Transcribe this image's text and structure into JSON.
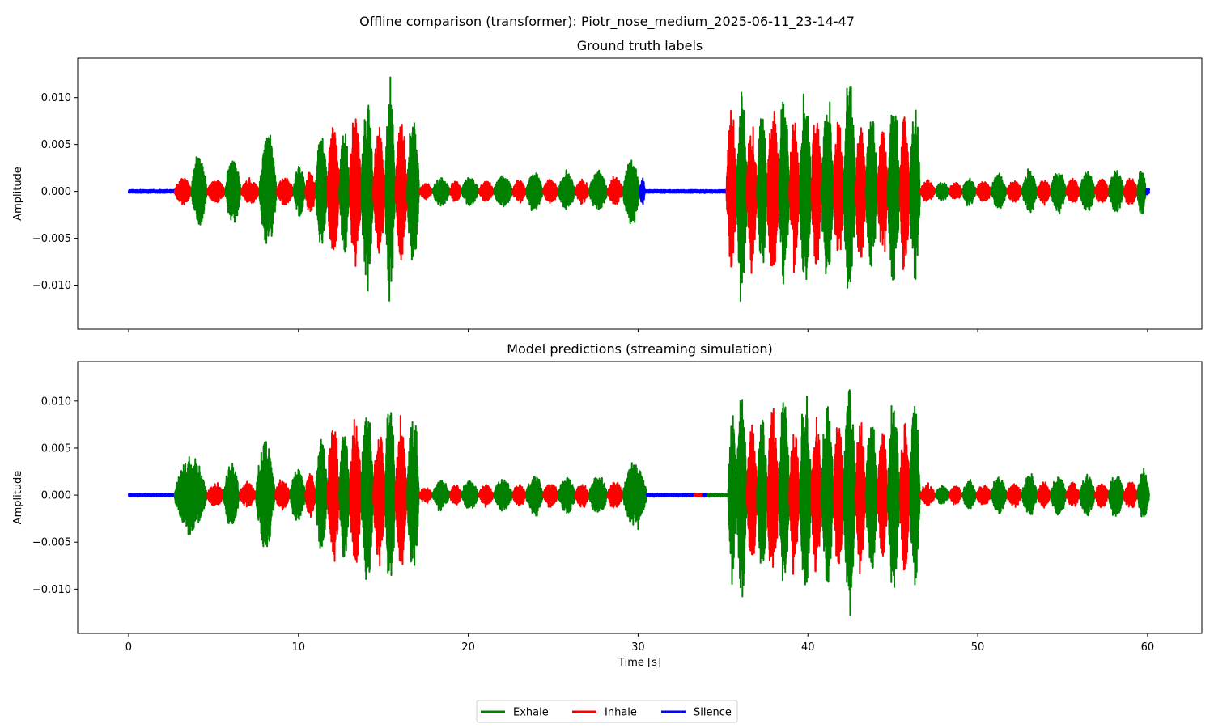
{
  "figure": {
    "suptitle": "Offline comparison (transformer): Piotr_nose_medium_2025-06-11_23-14-47"
  },
  "colors": {
    "Exhale": "#008000",
    "Inhale": "#ff0000",
    "Silence": "#0000ff"
  },
  "legend": {
    "placement": "bottom-center",
    "entries": [
      "Exhale",
      "Inhale",
      "Silence"
    ]
  },
  "chart_data": [
    {
      "type": "line",
      "title": "Ground truth labels",
      "xlabel": "",
      "ylabel": "Amplitude",
      "xlim": [
        -3,
        63.2
      ],
      "ylim": [
        -0.0147,
        0.0142
      ],
      "xticks": [
        0,
        10,
        20,
        30,
        40,
        50,
        60
      ],
      "xtick_labels": [
        "",
        "",
        "",
        "",
        "",
        "",
        ""
      ],
      "yticks": [
        -0.01,
        -0.005,
        0,
        0.005,
        0.01
      ],
      "ytick_labels": [
        "−0.010",
        "−0.005",
        "0.000",
        "0.005",
        "0.010"
      ],
      "grid": false,
      "segments": [
        {
          "label": "Silence",
          "start": 0.0,
          "end": 2.7,
          "amp": 0.0002
        },
        {
          "label": "Inhale",
          "start": 2.7,
          "end": 3.7,
          "amp": 0.0017
        },
        {
          "label": "Exhale",
          "start": 3.7,
          "end": 4.6,
          "amp": 0.0044
        },
        {
          "label": "Inhale",
          "start": 4.6,
          "end": 5.7,
          "amp": 0.0014
        },
        {
          "label": "Exhale",
          "start": 5.7,
          "end": 6.6,
          "amp": 0.0042
        },
        {
          "label": "Inhale",
          "start": 6.6,
          "end": 7.7,
          "amp": 0.0015
        },
        {
          "label": "Exhale",
          "start": 7.7,
          "end": 8.7,
          "amp": 0.0069
        },
        {
          "label": "Inhale",
          "start": 8.7,
          "end": 9.7,
          "amp": 0.0018
        },
        {
          "label": "Exhale",
          "start": 9.7,
          "end": 10.4,
          "amp": 0.0032
        },
        {
          "label": "Inhale",
          "start": 10.4,
          "end": 11.0,
          "amp": 0.0028
        },
        {
          "label": "Exhale",
          "start": 11.0,
          "end": 11.7,
          "amp": 0.007
        },
        {
          "label": "Inhale",
          "start": 11.7,
          "end": 12.4,
          "amp": 0.0087
        },
        {
          "label": "Exhale",
          "start": 12.4,
          "end": 13.0,
          "amp": 0.008
        },
        {
          "label": "Inhale",
          "start": 13.0,
          "end": 13.7,
          "amp": 0.0094
        },
        {
          "label": "Exhale",
          "start": 13.7,
          "end": 14.4,
          "amp": 0.0115
        },
        {
          "label": "Inhale",
          "start": 14.4,
          "end": 15.1,
          "amp": 0.0082
        },
        {
          "label": "Exhale",
          "start": 15.1,
          "end": 15.7,
          "amp": 0.0128
        },
        {
          "label": "Inhale",
          "start": 15.7,
          "end": 16.4,
          "amp": 0.0086
        },
        {
          "label": "Exhale",
          "start": 16.4,
          "end": 17.1,
          "amp": 0.0098
        },
        {
          "label": "Inhale",
          "start": 17.1,
          "end": 17.9,
          "amp": 0.001
        },
        {
          "label": "Exhale",
          "start": 17.9,
          "end": 18.9,
          "amp": 0.0018
        },
        {
          "label": "Inhale",
          "start": 18.9,
          "end": 19.6,
          "amp": 0.0013
        },
        {
          "label": "Exhale",
          "start": 19.6,
          "end": 20.6,
          "amp": 0.0018
        },
        {
          "label": "Inhale",
          "start": 20.6,
          "end": 21.5,
          "amp": 0.0013
        },
        {
          "label": "Exhale",
          "start": 21.5,
          "end": 22.6,
          "amp": 0.002
        },
        {
          "label": "Inhale",
          "start": 22.6,
          "end": 23.4,
          "amp": 0.0014
        },
        {
          "label": "Exhale",
          "start": 23.4,
          "end": 24.4,
          "amp": 0.0024
        },
        {
          "label": "Inhale",
          "start": 24.4,
          "end": 25.3,
          "amp": 0.0015
        },
        {
          "label": "Exhale",
          "start": 25.3,
          "end": 26.3,
          "amp": 0.0023
        },
        {
          "label": "Inhale",
          "start": 26.3,
          "end": 27.1,
          "amp": 0.0015
        },
        {
          "label": "Exhale",
          "start": 27.1,
          "end": 28.2,
          "amp": 0.0024
        },
        {
          "label": "Inhale",
          "start": 28.2,
          "end": 29.1,
          "amp": 0.0017
        },
        {
          "label": "Exhale",
          "start": 29.1,
          "end": 30.1,
          "amp": 0.0039
        },
        {
          "label": "Silence",
          "start": 30.1,
          "end": 30.4,
          "amp": 0.0018
        },
        {
          "label": "Silence",
          "start": 30.4,
          "end": 35.2,
          "amp": 0.0002
        },
        {
          "label": "Inhale",
          "start": 35.2,
          "end": 35.8,
          "amp": 0.0096
        },
        {
          "label": "Exhale",
          "start": 35.8,
          "end": 36.4,
          "amp": 0.013
        },
        {
          "label": "Inhale",
          "start": 36.4,
          "end": 37.0,
          "amp": 0.0094
        },
        {
          "label": "Exhale",
          "start": 37.0,
          "end": 37.6,
          "amp": 0.0098
        },
        {
          "label": "Inhale",
          "start": 37.6,
          "end": 38.3,
          "amp": 0.011
        },
        {
          "label": "Exhale",
          "start": 38.3,
          "end": 38.9,
          "amp": 0.012
        },
        {
          "label": "Inhale",
          "start": 38.9,
          "end": 39.5,
          "amp": 0.009
        },
        {
          "label": "Exhale",
          "start": 39.5,
          "end": 40.2,
          "amp": 0.0118
        },
        {
          "label": "Inhale",
          "start": 40.2,
          "end": 40.8,
          "amp": 0.01
        },
        {
          "label": "Exhale",
          "start": 40.8,
          "end": 41.5,
          "amp": 0.0112
        },
        {
          "label": "Inhale",
          "start": 41.5,
          "end": 42.1,
          "amp": 0.0092
        },
        {
          "label": "Exhale",
          "start": 42.1,
          "end": 42.8,
          "amp": 0.0135
        },
        {
          "label": "Inhale",
          "start": 42.8,
          "end": 43.4,
          "amp": 0.009
        },
        {
          "label": "Exhale",
          "start": 43.4,
          "end": 44.1,
          "amp": 0.0095
        },
        {
          "label": "Inhale",
          "start": 44.1,
          "end": 44.7,
          "amp": 0.008
        },
        {
          "label": "Exhale",
          "start": 44.7,
          "end": 45.4,
          "amp": 0.0118
        },
        {
          "label": "Inhale",
          "start": 45.4,
          "end": 46.0,
          "amp": 0.0096
        },
        {
          "label": "Exhale",
          "start": 46.0,
          "end": 46.6,
          "amp": 0.0114
        },
        {
          "label": "Inhale",
          "start": 46.6,
          "end": 47.5,
          "amp": 0.0013
        },
        {
          "label": "Exhale",
          "start": 47.5,
          "end": 48.3,
          "amp": 0.0012
        },
        {
          "label": "Inhale",
          "start": 48.3,
          "end": 49.1,
          "amp": 0.0011
        },
        {
          "label": "Exhale",
          "start": 49.1,
          "end": 49.9,
          "amp": 0.0018
        },
        {
          "label": "Inhale",
          "start": 49.9,
          "end": 50.8,
          "amp": 0.0013
        },
        {
          "label": "Exhale",
          "start": 50.8,
          "end": 51.7,
          "amp": 0.0023
        },
        {
          "label": "Inhale",
          "start": 51.7,
          "end": 52.6,
          "amp": 0.0014
        },
        {
          "label": "Exhale",
          "start": 52.6,
          "end": 53.5,
          "amp": 0.0025
        },
        {
          "label": "Inhale",
          "start": 53.5,
          "end": 54.3,
          "amp": 0.0015
        },
        {
          "label": "Exhale",
          "start": 54.3,
          "end": 55.2,
          "amp": 0.0025
        },
        {
          "label": "Inhale",
          "start": 55.2,
          "end": 56.0,
          "amp": 0.0016
        },
        {
          "label": "Exhale",
          "start": 56.0,
          "end": 56.9,
          "amp": 0.0026
        },
        {
          "label": "Inhale",
          "start": 56.9,
          "end": 57.7,
          "amp": 0.0016
        },
        {
          "label": "Exhale",
          "start": 57.7,
          "end": 58.6,
          "amp": 0.0027
        },
        {
          "label": "Inhale",
          "start": 58.6,
          "end": 59.4,
          "amp": 0.0018
        },
        {
          "label": "Exhale",
          "start": 59.4,
          "end": 59.9,
          "amp": 0.003
        },
        {
          "label": "Silence",
          "start": 59.9,
          "end": 60.1,
          "amp": 0.0004
        }
      ]
    },
    {
      "type": "line",
      "title": "Model predictions (streaming simulation)",
      "xlabel": "Time [s]",
      "ylabel": "Amplitude",
      "xlim": [
        -3,
        63.2
      ],
      "ylim": [
        -0.0147,
        0.0142
      ],
      "xticks": [
        0,
        10,
        20,
        30,
        40,
        50,
        60
      ],
      "xtick_labels": [
        "0",
        "10",
        "20",
        "30",
        "40",
        "50",
        "60"
      ],
      "yticks": [
        -0.01,
        -0.005,
        0,
        0.005,
        0.01
      ],
      "ytick_labels": [
        "−0.010",
        "−0.005",
        "0.000",
        "0.005",
        "0.010"
      ],
      "grid": false,
      "segments": [
        {
          "label": "Silence",
          "start": 0.0,
          "end": 2.7,
          "amp": 0.0002
        },
        {
          "label": "Exhale",
          "start": 2.7,
          "end": 4.6,
          "amp": 0.0044
        },
        {
          "label": "Inhale",
          "start": 4.6,
          "end": 5.6,
          "amp": 0.0014
        },
        {
          "label": "Exhale",
          "start": 5.6,
          "end": 6.5,
          "amp": 0.0042
        },
        {
          "label": "Inhale",
          "start": 6.5,
          "end": 7.5,
          "amp": 0.0015
        },
        {
          "label": "Exhale",
          "start": 7.5,
          "end": 8.6,
          "amp": 0.0069
        },
        {
          "label": "Inhale",
          "start": 8.6,
          "end": 9.5,
          "amp": 0.0018
        },
        {
          "label": "Exhale",
          "start": 9.5,
          "end": 10.4,
          "amp": 0.0032
        },
        {
          "label": "Inhale",
          "start": 10.4,
          "end": 11.0,
          "amp": 0.0028
        },
        {
          "label": "Exhale",
          "start": 11.0,
          "end": 11.7,
          "amp": 0.007
        },
        {
          "label": "Inhale",
          "start": 11.7,
          "end": 12.4,
          "amp": 0.0087
        },
        {
          "label": "Exhale",
          "start": 12.4,
          "end": 13.0,
          "amp": 0.008
        },
        {
          "label": "Inhale",
          "start": 13.0,
          "end": 13.7,
          "amp": 0.0094
        },
        {
          "label": "Exhale",
          "start": 13.7,
          "end": 14.4,
          "amp": 0.0115
        },
        {
          "label": "Inhale",
          "start": 14.4,
          "end": 15.1,
          "amp": 0.0082
        },
        {
          "label": "Exhale",
          "start": 15.1,
          "end": 15.7,
          "amp": 0.0128
        },
        {
          "label": "Inhale",
          "start": 15.7,
          "end": 16.4,
          "amp": 0.0086
        },
        {
          "label": "Exhale",
          "start": 16.4,
          "end": 17.1,
          "amp": 0.0098
        },
        {
          "label": "Inhale",
          "start": 17.1,
          "end": 17.9,
          "amp": 0.001
        },
        {
          "label": "Exhale",
          "start": 17.9,
          "end": 18.9,
          "amp": 0.0018
        },
        {
          "label": "Inhale",
          "start": 18.9,
          "end": 19.6,
          "amp": 0.0013
        },
        {
          "label": "Exhale",
          "start": 19.6,
          "end": 20.6,
          "amp": 0.0018
        },
        {
          "label": "Inhale",
          "start": 20.6,
          "end": 21.5,
          "amp": 0.0013
        },
        {
          "label": "Exhale",
          "start": 21.5,
          "end": 22.6,
          "amp": 0.002
        },
        {
          "label": "Inhale",
          "start": 22.6,
          "end": 23.4,
          "amp": 0.0014
        },
        {
          "label": "Exhale",
          "start": 23.4,
          "end": 24.4,
          "amp": 0.0024
        },
        {
          "label": "Inhale",
          "start": 24.4,
          "end": 25.3,
          "amp": 0.0015
        },
        {
          "label": "Exhale",
          "start": 25.3,
          "end": 26.3,
          "amp": 0.0023
        },
        {
          "label": "Inhale",
          "start": 26.3,
          "end": 27.1,
          "amp": 0.0015
        },
        {
          "label": "Exhale",
          "start": 27.1,
          "end": 28.2,
          "amp": 0.0024
        },
        {
          "label": "Inhale",
          "start": 28.2,
          "end": 29.1,
          "amp": 0.0017
        },
        {
          "label": "Exhale",
          "start": 29.1,
          "end": 30.5,
          "amp": 0.0039
        },
        {
          "label": "Silence",
          "start": 30.5,
          "end": 33.3,
          "amp": 0.0002
        },
        {
          "label": "Inhale",
          "start": 33.3,
          "end": 33.8,
          "amp": 0.0002
        },
        {
          "label": "Silence",
          "start": 33.8,
          "end": 34.1,
          "amp": 0.0002
        },
        {
          "label": "Exhale",
          "start": 34.1,
          "end": 35.3,
          "amp": 0.0002
        },
        {
          "label": "Exhale",
          "start": 35.3,
          "end": 35.8,
          "amp": 0.0096
        },
        {
          "label": "Exhale",
          "start": 35.8,
          "end": 36.4,
          "amp": 0.013
        },
        {
          "label": "Inhale",
          "start": 36.4,
          "end": 37.0,
          "amp": 0.0094
        },
        {
          "label": "Exhale",
          "start": 37.0,
          "end": 37.6,
          "amp": 0.0098
        },
        {
          "label": "Inhale",
          "start": 37.6,
          "end": 38.3,
          "amp": 0.011
        },
        {
          "label": "Exhale",
          "start": 38.3,
          "end": 38.9,
          "amp": 0.012
        },
        {
          "label": "Inhale",
          "start": 38.9,
          "end": 39.5,
          "amp": 0.009
        },
        {
          "label": "Exhale",
          "start": 39.5,
          "end": 40.2,
          "amp": 0.0118
        },
        {
          "label": "Inhale",
          "start": 40.2,
          "end": 40.8,
          "amp": 0.01
        },
        {
          "label": "Exhale",
          "start": 40.8,
          "end": 41.5,
          "amp": 0.0112
        },
        {
          "label": "Inhale",
          "start": 41.5,
          "end": 42.1,
          "amp": 0.0092
        },
        {
          "label": "Exhale",
          "start": 42.1,
          "end": 42.8,
          "amp": 0.0135
        },
        {
          "label": "Inhale",
          "start": 42.8,
          "end": 43.4,
          "amp": 0.009
        },
        {
          "label": "Exhale",
          "start": 43.4,
          "end": 44.1,
          "amp": 0.0095
        },
        {
          "label": "Inhale",
          "start": 44.1,
          "end": 44.7,
          "amp": 0.008
        },
        {
          "label": "Exhale",
          "start": 44.7,
          "end": 45.4,
          "amp": 0.0118
        },
        {
          "label": "Inhale",
          "start": 45.4,
          "end": 46.0,
          "amp": 0.0096
        },
        {
          "label": "Exhale",
          "start": 46.0,
          "end": 46.6,
          "amp": 0.0114
        },
        {
          "label": "Inhale",
          "start": 46.6,
          "end": 47.5,
          "amp": 0.0013
        },
        {
          "label": "Exhale",
          "start": 47.5,
          "end": 48.3,
          "amp": 0.0012
        },
        {
          "label": "Inhale",
          "start": 48.3,
          "end": 49.1,
          "amp": 0.0011
        },
        {
          "label": "Exhale",
          "start": 49.1,
          "end": 49.9,
          "amp": 0.0018
        },
        {
          "label": "Inhale",
          "start": 49.9,
          "end": 50.8,
          "amp": 0.0013
        },
        {
          "label": "Exhale",
          "start": 50.8,
          "end": 51.7,
          "amp": 0.0023
        },
        {
          "label": "Inhale",
          "start": 51.7,
          "end": 52.6,
          "amp": 0.0014
        },
        {
          "label": "Exhale",
          "start": 52.6,
          "end": 53.5,
          "amp": 0.0025
        },
        {
          "label": "Inhale",
          "start": 53.5,
          "end": 54.3,
          "amp": 0.0015
        },
        {
          "label": "Exhale",
          "start": 54.3,
          "end": 55.2,
          "amp": 0.0025
        },
        {
          "label": "Inhale",
          "start": 55.2,
          "end": 56.0,
          "amp": 0.0016
        },
        {
          "label": "Exhale",
          "start": 56.0,
          "end": 56.9,
          "amp": 0.0026
        },
        {
          "label": "Inhale",
          "start": 56.9,
          "end": 57.7,
          "amp": 0.0016
        },
        {
          "label": "Exhale",
          "start": 57.7,
          "end": 58.6,
          "amp": 0.0027
        },
        {
          "label": "Inhale",
          "start": 58.6,
          "end": 59.4,
          "amp": 0.0018
        },
        {
          "label": "Exhale",
          "start": 59.4,
          "end": 60.1,
          "amp": 0.003
        }
      ]
    }
  ]
}
